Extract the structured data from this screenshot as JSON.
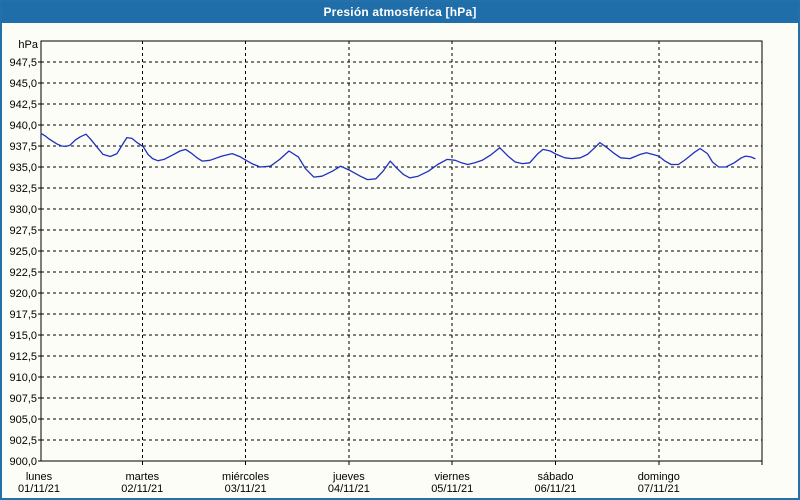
{
  "window": {
    "title": "Presión atmosférica [hPa]"
  },
  "colors": {
    "titlebar_bg": "#1f6ea9",
    "window_border": "#2371ab",
    "background": "#fcfdf6",
    "plot_border": "#000000",
    "grid": "#000000",
    "line": "#2030c0",
    "text": "#000000",
    "title_text": "#ffffff"
  },
  "chart_data": {
    "type": "line",
    "title": "Presión atmosférica [hPa]",
    "ylabel": "hPa",
    "ylim": [
      900,
      950
    ],
    "y_tick_step": 2.5,
    "y_tick_labels": [
      "947,5",
      "945,0",
      "942,5",
      "940,0",
      "937,5",
      "935,0",
      "932,5",
      "930,0",
      "927,5",
      "925,0",
      "922,5",
      "920,0",
      "917,5",
      "915,0",
      "912,5",
      "910,0",
      "907,5",
      "905,0",
      "902,5",
      "900,0"
    ],
    "grid": {
      "horizontal": true,
      "vertical_per_day": true,
      "dash": [
        3,
        3
      ]
    },
    "legend_position": "none",
    "x_axis": {
      "range_days": [
        0.02,
        7
      ],
      "days": [
        {
          "name": "lunes",
          "date": "01/11/21"
        },
        {
          "name": "martes",
          "date": "02/11/21"
        },
        {
          "name": "miércoles",
          "date": "03/11/21"
        },
        {
          "name": "jueves",
          "date": "04/11/21"
        },
        {
          "name": "viernes",
          "date": "05/11/21"
        },
        {
          "name": "sábado",
          "date": "06/11/21"
        },
        {
          "name": "domingo",
          "date": "07/11/21"
        }
      ]
    },
    "series": [
      {
        "name": "Presión atmosférica",
        "unit": "hPa",
        "color": "#2030c0",
        "points_day_value": [
          [
            0.02,
            939.0
          ],
          [
            0.06,
            938.7
          ],
          [
            0.09,
            938.4
          ],
          [
            0.14,
            938.0
          ],
          [
            0.18,
            937.7
          ],
          [
            0.22,
            937.5
          ],
          [
            0.26,
            937.45
          ],
          [
            0.3,
            937.6
          ],
          [
            0.35,
            938.2
          ],
          [
            0.4,
            938.6
          ],
          [
            0.455,
            938.9
          ],
          [
            0.5,
            938.3
          ],
          [
            0.56,
            937.4
          ],
          [
            0.62,
            936.5
          ],
          [
            0.69,
            936.25
          ],
          [
            0.755,
            936.6
          ],
          [
            0.8,
            937.5
          ],
          [
            0.85,
            938.5
          ],
          [
            0.9,
            938.4
          ],
          [
            0.95,
            937.9
          ],
          [
            1.01,
            937.4
          ],
          [
            1.055,
            936.5
          ],
          [
            1.1,
            936.0
          ],
          [
            1.15,
            935.75
          ],
          [
            1.21,
            935.9
          ],
          [
            1.29,
            936.4
          ],
          [
            1.365,
            936.9
          ],
          [
            1.42,
            937.1
          ],
          [
            1.48,
            936.6
          ],
          [
            1.53,
            936.1
          ],
          [
            1.58,
            935.7
          ],
          [
            1.655,
            935.8
          ],
          [
            1.77,
            936.3
          ],
          [
            1.87,
            936.6
          ],
          [
            1.95,
            936.2
          ],
          [
            1.99,
            935.9
          ],
          [
            2.06,
            935.4
          ],
          [
            2.14,
            935.0
          ],
          [
            2.24,
            935.1
          ],
          [
            2.33,
            935.9
          ],
          [
            2.42,
            936.9
          ],
          [
            2.51,
            936.2
          ],
          [
            2.58,
            934.8
          ],
          [
            2.66,
            933.8
          ],
          [
            2.74,
            933.9
          ],
          [
            2.84,
            934.5
          ],
          [
            2.92,
            935.1
          ],
          [
            3.01,
            934.6
          ],
          [
            3.11,
            933.9
          ],
          [
            3.18,
            933.5
          ],
          [
            3.26,
            933.6
          ],
          [
            3.33,
            934.5
          ],
          [
            3.4,
            935.7
          ],
          [
            3.46,
            934.9
          ],
          [
            3.53,
            934.1
          ],
          [
            3.59,
            933.7
          ],
          [
            3.67,
            933.9
          ],
          [
            3.77,
            934.5
          ],
          [
            3.86,
            935.3
          ],
          [
            3.95,
            935.9
          ],
          [
            4.03,
            935.8
          ],
          [
            4.09,
            935.5
          ],
          [
            4.15,
            935.3
          ],
          [
            4.22,
            935.5
          ],
          [
            4.29,
            935.8
          ],
          [
            4.37,
            936.4
          ],
          [
            4.46,
            937.3
          ],
          [
            4.54,
            936.3
          ],
          [
            4.61,
            935.6
          ],
          [
            4.68,
            935.4
          ],
          [
            4.75,
            935.5
          ],
          [
            4.83,
            936.6
          ],
          [
            4.88,
            937.1
          ],
          [
            4.95,
            936.9
          ],
          [
            5.01,
            936.5
          ],
          [
            5.09,
            936.1
          ],
          [
            5.16,
            936.0
          ],
          [
            5.24,
            936.1
          ],
          [
            5.31,
            936.5
          ],
          [
            5.38,
            937.3
          ],
          [
            5.43,
            937.9
          ],
          [
            5.5,
            937.3
          ],
          [
            5.57,
            936.6
          ],
          [
            5.63,
            936.1
          ],
          [
            5.72,
            936.0
          ],
          [
            5.82,
            936.5
          ],
          [
            5.88,
            936.7
          ],
          [
            5.94,
            936.5
          ],
          [
            6.0,
            936.3
          ],
          [
            6.06,
            935.7
          ],
          [
            6.12,
            935.3
          ],
          [
            6.19,
            935.3
          ],
          [
            6.26,
            935.9
          ],
          [
            6.34,
            936.7
          ],
          [
            6.4,
            937.2
          ],
          [
            6.47,
            936.6
          ],
          [
            6.52,
            935.6
          ],
          [
            6.58,
            935.0
          ],
          [
            6.65,
            935.0
          ],
          [
            6.73,
            935.5
          ],
          [
            6.8,
            936.1
          ],
          [
            6.84,
            936.3
          ],
          [
            6.89,
            936.2
          ],
          [
            6.93,
            936.0
          ]
        ]
      }
    ]
  }
}
